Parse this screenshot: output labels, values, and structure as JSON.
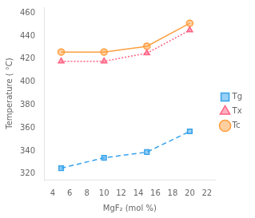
{
  "chart_data": {
    "type": "line",
    "xlabel": "MgF₂ (mol %)",
    "ylabel": "Temperature ( °C)",
    "x": [
      5,
      10,
      15,
      20
    ],
    "series": [
      {
        "name": "Tg",
        "values": [
          325,
          334,
          339,
          357
        ],
        "marker": "square",
        "line_style": "dashed"
      },
      {
        "name": "Tx",
        "values": [
          418,
          418,
          425,
          445
        ],
        "marker": "triangle",
        "line_style": "dotted"
      },
      {
        "name": "Tc",
        "values": [
          426,
          426,
          431,
          451
        ],
        "marker": "circle",
        "line_style": "solid"
      }
    ],
    "xlim": [
      3,
      23
    ],
    "ylim": [
      315,
      465
    ],
    "xticks": [
      4,
      6,
      8,
      10,
      12,
      14,
      16,
      18,
      20,
      22
    ],
    "yticks": [
      320,
      340,
      360,
      380,
      400,
      420,
      440,
      460
    ],
    "grid": false,
    "legend": "right"
  }
}
